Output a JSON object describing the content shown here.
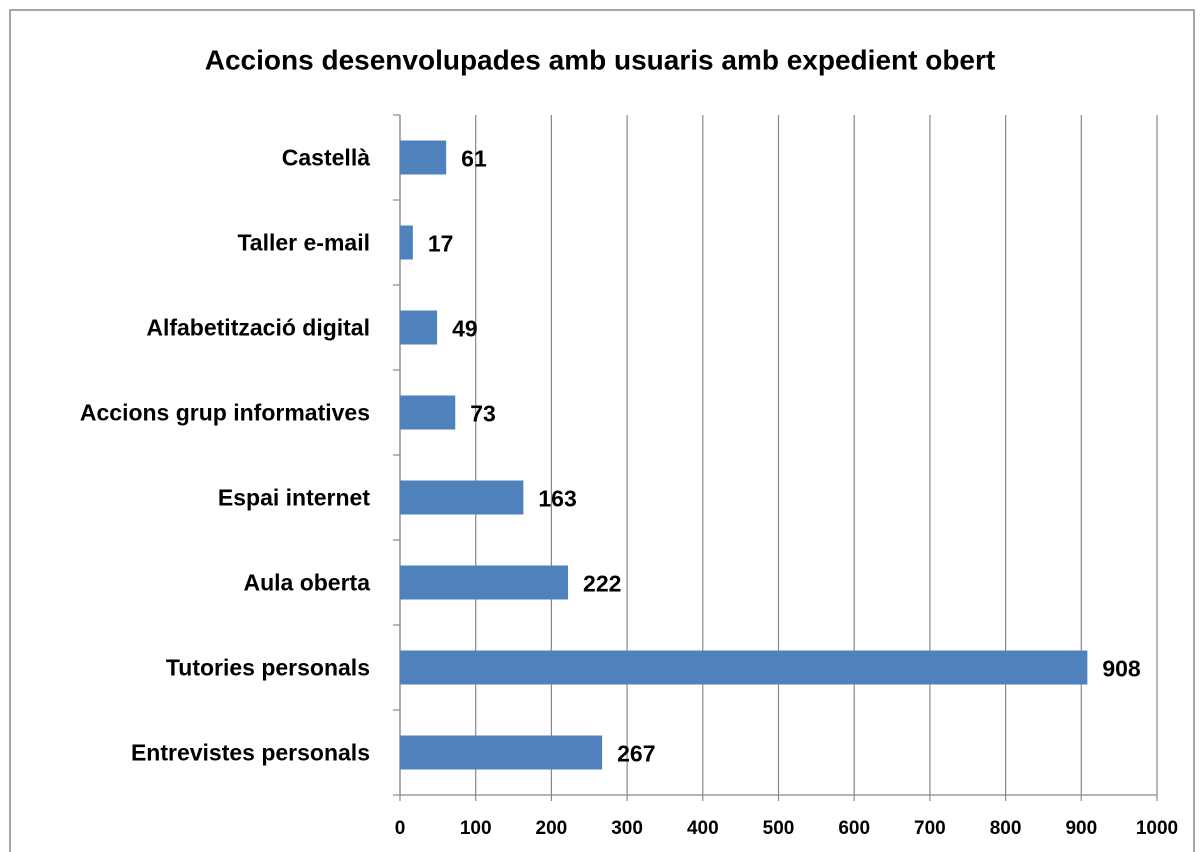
{
  "chart_data": {
    "type": "bar",
    "orientation": "horizontal",
    "title": "Accions desenvolupades amb usuaris amb expedient obert",
    "categories": [
      "Castellà",
      "Taller e-mail",
      "Alfabetització digital",
      "Accions grup informatives",
      "Espai internet",
      "Aula oberta",
      "Tutories personals",
      "Entrevistes personals"
    ],
    "values": [
      61,
      17,
      49,
      73,
      163,
      222,
      908,
      267
    ],
    "color": "#4f81bd",
    "xlim": [
      0,
      1000
    ],
    "xticks": [
      0,
      100,
      200,
      300,
      400,
      500,
      600,
      700,
      800,
      900,
      1000
    ],
    "grid": true
  }
}
